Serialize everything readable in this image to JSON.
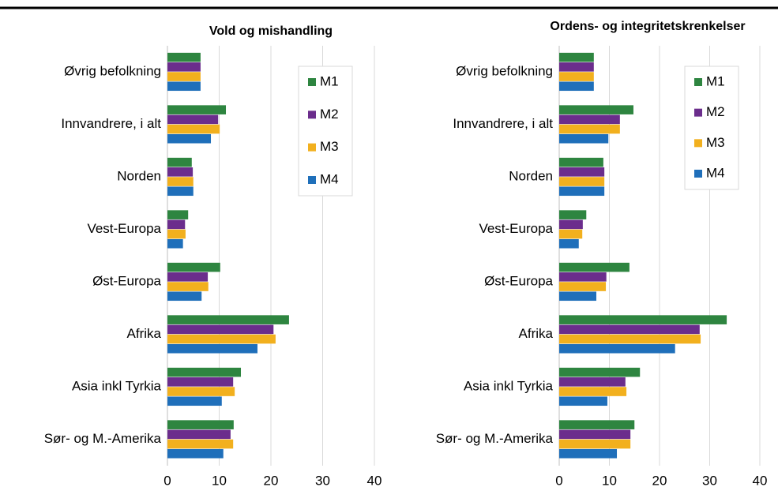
{
  "chart_data": [
    {
      "type": "barh",
      "title": "Vold og mishandling",
      "categories": [
        "Øvrig befolkning",
        "Innvandrere, i alt",
        "Norden",
        "Vest-Europa",
        "Øst-Europa",
        "Afrika",
        "Asia inkl Tyrkia",
        "Sør- og M.-Amerika"
      ],
      "series": [
        {
          "name": "M1",
          "color": "#2e8540",
          "values": [
            6.4,
            11.3,
            4.7,
            4.0,
            10.2,
            23.5,
            14.2,
            12.8
          ]
        },
        {
          "name": "M2",
          "color": "#6b2d8c",
          "values": [
            6.4,
            9.8,
            4.9,
            3.4,
            7.8,
            20.5,
            12.7,
            12.2
          ]
        },
        {
          "name": "M3",
          "color": "#f2b01e",
          "values": [
            6.4,
            10.1,
            5.0,
            3.5,
            7.9,
            20.9,
            13.0,
            12.7
          ]
        },
        {
          "name": "M4",
          "color": "#1f6fba",
          "values": [
            6.4,
            8.4,
            5.0,
            3.0,
            6.6,
            17.4,
            10.5,
            10.8
          ]
        }
      ],
      "xlim": [
        0,
        40
      ],
      "xticks": [
        0,
        10,
        20,
        30,
        40
      ],
      "grid": true,
      "legend": "upper right"
    },
    {
      "type": "barh",
      "title": "Ordens- og integritetskrenkelser",
      "categories": [
        "Øvrig befolkning",
        "Innvandrere, i alt",
        "Norden",
        "Vest-Europa",
        "Øst-Europa",
        "Afrika",
        "Asia inkl Tyrkia",
        "Sør- og M.-Amerika"
      ],
      "series": [
        {
          "name": "M1",
          "color": "#2e8540",
          "values": [
            6.9,
            14.8,
            8.8,
            5.4,
            14.0,
            33.4,
            16.1,
            15.0
          ]
        },
        {
          "name": "M2",
          "color": "#6b2d8c",
          "values": [
            6.9,
            12.1,
            9.0,
            4.7,
            9.4,
            28.0,
            13.2,
            14.2
          ]
        },
        {
          "name": "M3",
          "color": "#f2b01e",
          "values": [
            6.9,
            12.1,
            9.0,
            4.6,
            9.3,
            28.2,
            13.4,
            14.2
          ]
        },
        {
          "name": "M4",
          "color": "#1f6fba",
          "values": [
            6.9,
            9.8,
            9.0,
            3.9,
            7.4,
            23.1,
            9.6,
            11.5
          ]
        }
      ],
      "xlim": [
        0,
        40
      ],
      "xticks": [
        0,
        10,
        20,
        30,
        40
      ],
      "grid": true,
      "legend": "upper right"
    }
  ]
}
